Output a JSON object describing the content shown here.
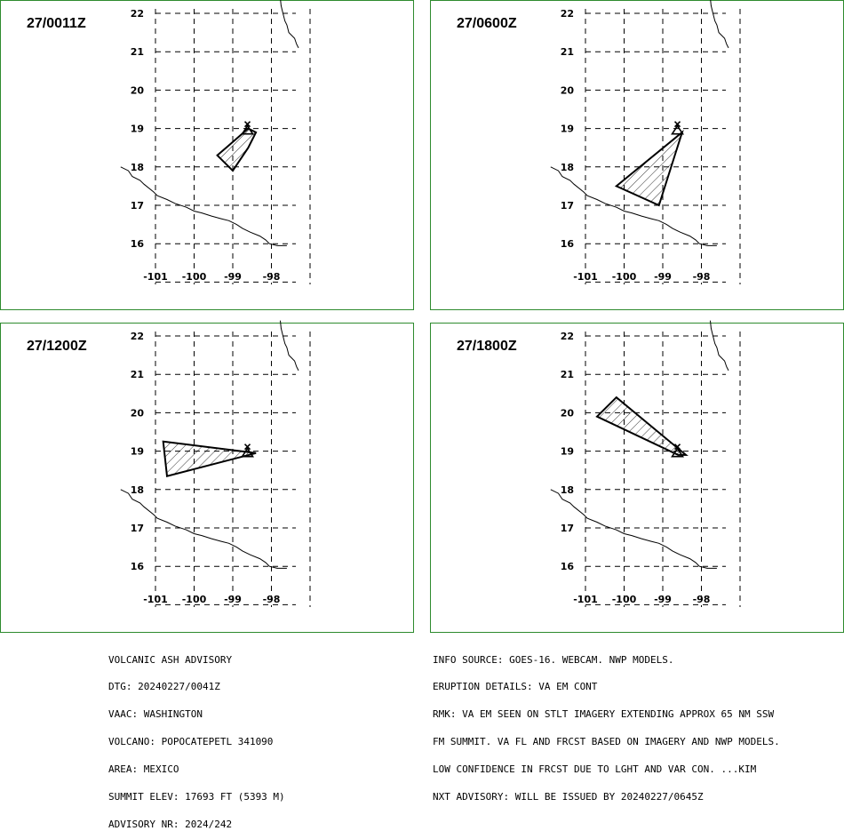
{
  "colors": {
    "frame": "#2e8b2e",
    "lines": "#000000",
    "background": "#ffffff"
  },
  "lat_ticks": [
    "22",
    "21",
    "20",
    "19",
    "18",
    "17",
    "16"
  ],
  "lon_ticks": [
    "-101",
    "-100",
    "-99",
    "-98"
  ],
  "panels": [
    {
      "time": "27/0011Z",
      "ash_polygon": [
        [
          -99.4,
          18.3
        ],
        [
          -98.6,
          19.0
        ],
        [
          -98.4,
          18.9
        ],
        [
          -98.6,
          18.5
        ],
        [
          -99.0,
          17.9
        ]
      ]
    },
    {
      "time": "27/0600Z",
      "ash_polygon": [
        [
          -100.2,
          17.5
        ],
        [
          -98.5,
          18.9
        ],
        [
          -99.1,
          17.0
        ]
      ]
    },
    {
      "time": "27/1200Z",
      "ash_polygon": [
        [
          -100.8,
          19.25
        ],
        [
          -98.4,
          18.95
        ],
        [
          -100.7,
          18.35
        ]
      ]
    },
    {
      "time": "27/1800Z",
      "ash_polygon": [
        [
          -100.7,
          19.9
        ],
        [
          -100.2,
          20.4
        ],
        [
          -98.4,
          18.9
        ],
        [
          -98.6,
          18.9
        ]
      ]
    }
  ],
  "volcano": {
    "name": "POPOCATEPETL",
    "lon": -98.62,
    "lat": 19.02,
    "icon": "volcano-icon"
  },
  "advisory_left": [
    "VOLCANIC ASH ADVISORY",
    "DTG: 20240227/0041Z",
    "VAAC: WASHINGTON",
    "VOLCANO: POPOCATEPETL 341090",
    "AREA: MEXICO",
    "SUMMIT ELEV: 17693 FT (5393 M)",
    "ADVISORY NR: 2024/242"
  ],
  "advisory_right": [
    "INFO SOURCE: GOES-16. WEBCAM. NWP MODELS.",
    "ERUPTION DETAILS: VA EM CONT",
    "RMK: VA EM SEEN ON STLT IMAGERY EXTENDING APPROX 65 NM SSW",
    "FM SUMMIT. VA FL AND FRCST BASED ON IMAGERY AND NWP MODELS.",
    "LOW CONFIDENCE IN FRCST DUE TO LGHT AND VAR CON. ...KIM",
    "NXT ADVISORY: WILL BE ISSUED BY 20240227/0645Z"
  ]
}
